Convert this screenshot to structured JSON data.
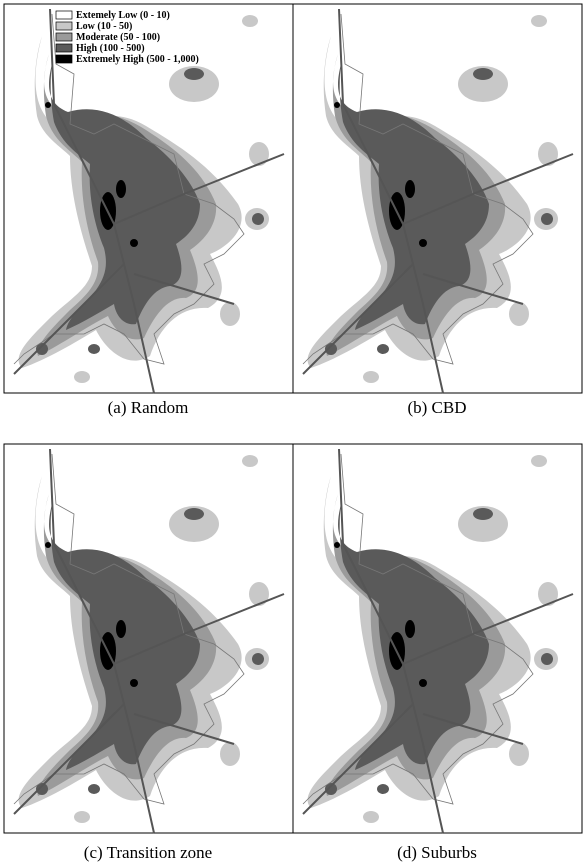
{
  "legend": {
    "items": [
      "Extemely Low (0 - 10)",
      "Low (10 - 50)",
      "Moderate (50 - 100)",
      "High (100 - 500)",
      "Extremely High (500 - 1,000)"
    ]
  },
  "panels": [
    {
      "caption": "(a) Random"
    },
    {
      "caption": "(b) CBD"
    },
    {
      "caption": "(c) Transition zone"
    },
    {
      "caption": "(d) Suburbs"
    }
  ]
}
